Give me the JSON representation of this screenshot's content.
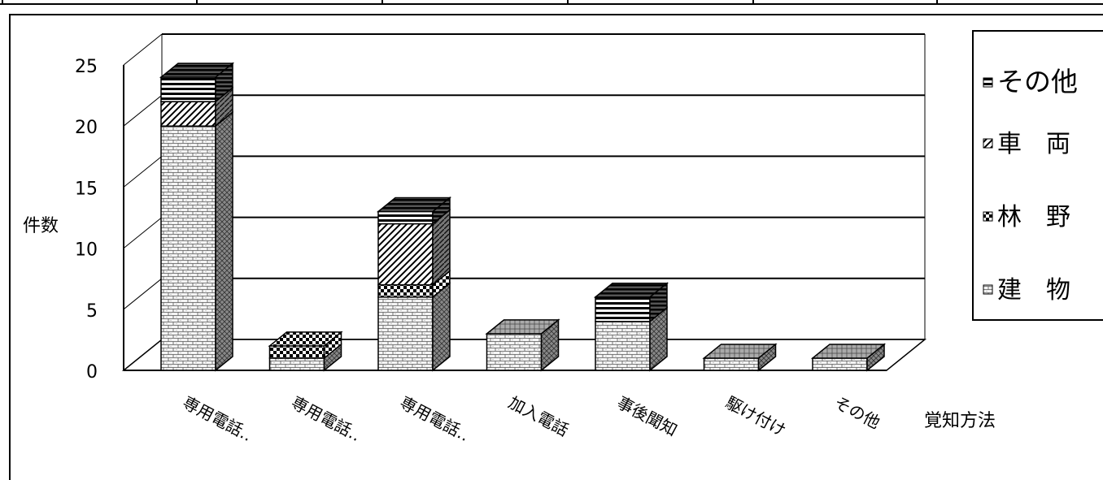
{
  "chart_data": {
    "type": "bar",
    "stacked": true,
    "three_d": true,
    "ylabel": "件数",
    "xlabel": "覚知方法",
    "ylim": [
      0,
      25
    ],
    "yticks": [
      "0",
      "5",
      "10",
      "15",
      "20",
      "25"
    ],
    "grid": true,
    "legend_position": "right",
    "categories": [
      "専用電話‥",
      "専用電話‥",
      "専用電話‥",
      "加入電話",
      "事後聞知",
      "駆け付け",
      "その他"
    ],
    "series": [
      {
        "name": "建　物",
        "values": [
          20,
          1,
          6,
          3,
          4,
          1,
          1
        ]
      },
      {
        "name": "林　野",
        "values": [
          0,
          1,
          1,
          0,
          0,
          0,
          0
        ]
      },
      {
        "name": "車　両",
        "values": [
          2,
          0,
          5,
          0,
          0,
          0,
          0
        ]
      },
      {
        "name": "その他",
        "values": [
          2,
          0,
          1,
          0,
          2,
          0,
          0
        ]
      }
    ],
    "legend_order": [
      "その他",
      "車　両",
      "林　野",
      "建　物"
    ]
  }
}
